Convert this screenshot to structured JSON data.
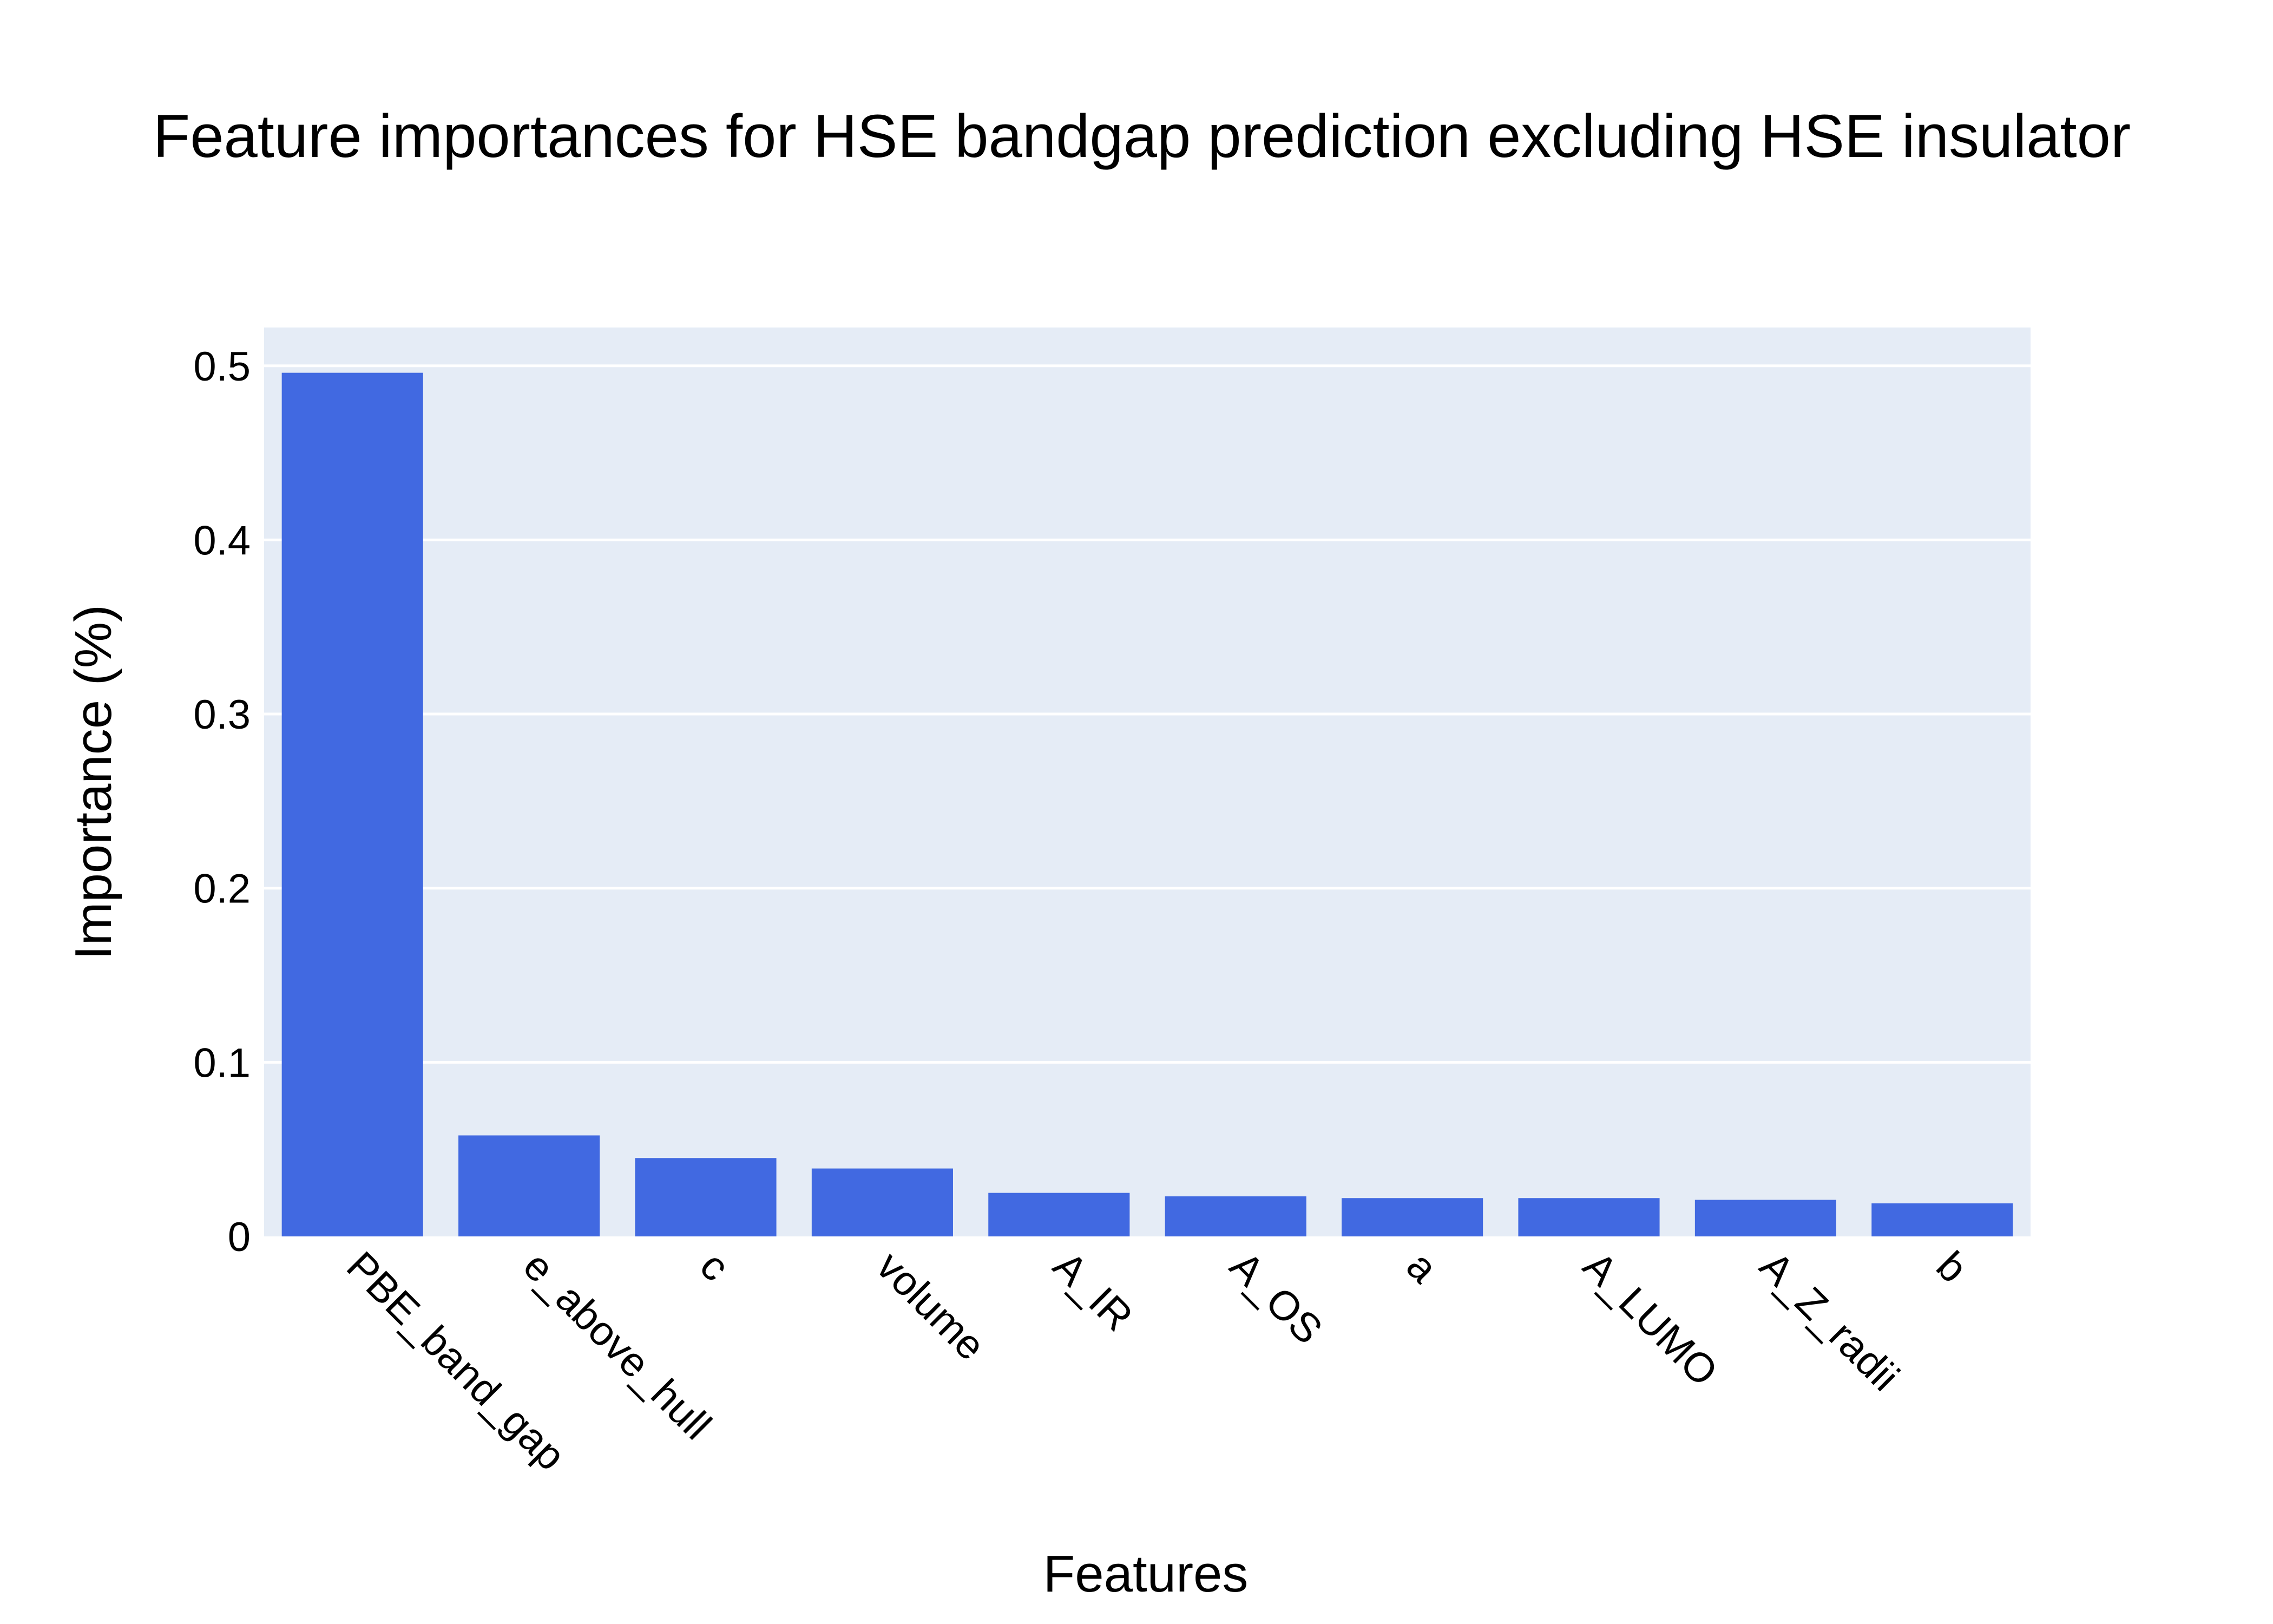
{
  "chart_data": {
    "type": "bar",
    "title": "Feature importances for HSE bandgap prediction excluding HSE insulator",
    "xlabel": "Features",
    "ylabel": "Importance (%)",
    "categories": [
      "PBE_band_gap",
      "e_above_hull",
      "c",
      "volume",
      "A_IR",
      "A_OS",
      "a",
      "A_LUMO",
      "A_Z_radii",
      "b"
    ],
    "values": [
      0.496,
      0.058,
      0.045,
      0.039,
      0.025,
      0.023,
      0.022,
      0.022,
      0.021,
      0.019
    ],
    "ylim": [
      0,
      0.522
    ],
    "yticks": [
      0,
      0.1,
      0.2,
      0.3,
      0.4,
      0.5
    ],
    "ytick_labels": [
      "0",
      "0.1",
      "0.2",
      "0.3",
      "0.4",
      "0.5"
    ],
    "grid": true,
    "legend": "none",
    "colors": {
      "bar": "#4169e1",
      "plot_background": "#e5ecf6",
      "grid": "#ffffff",
      "text": "#000000"
    }
  }
}
